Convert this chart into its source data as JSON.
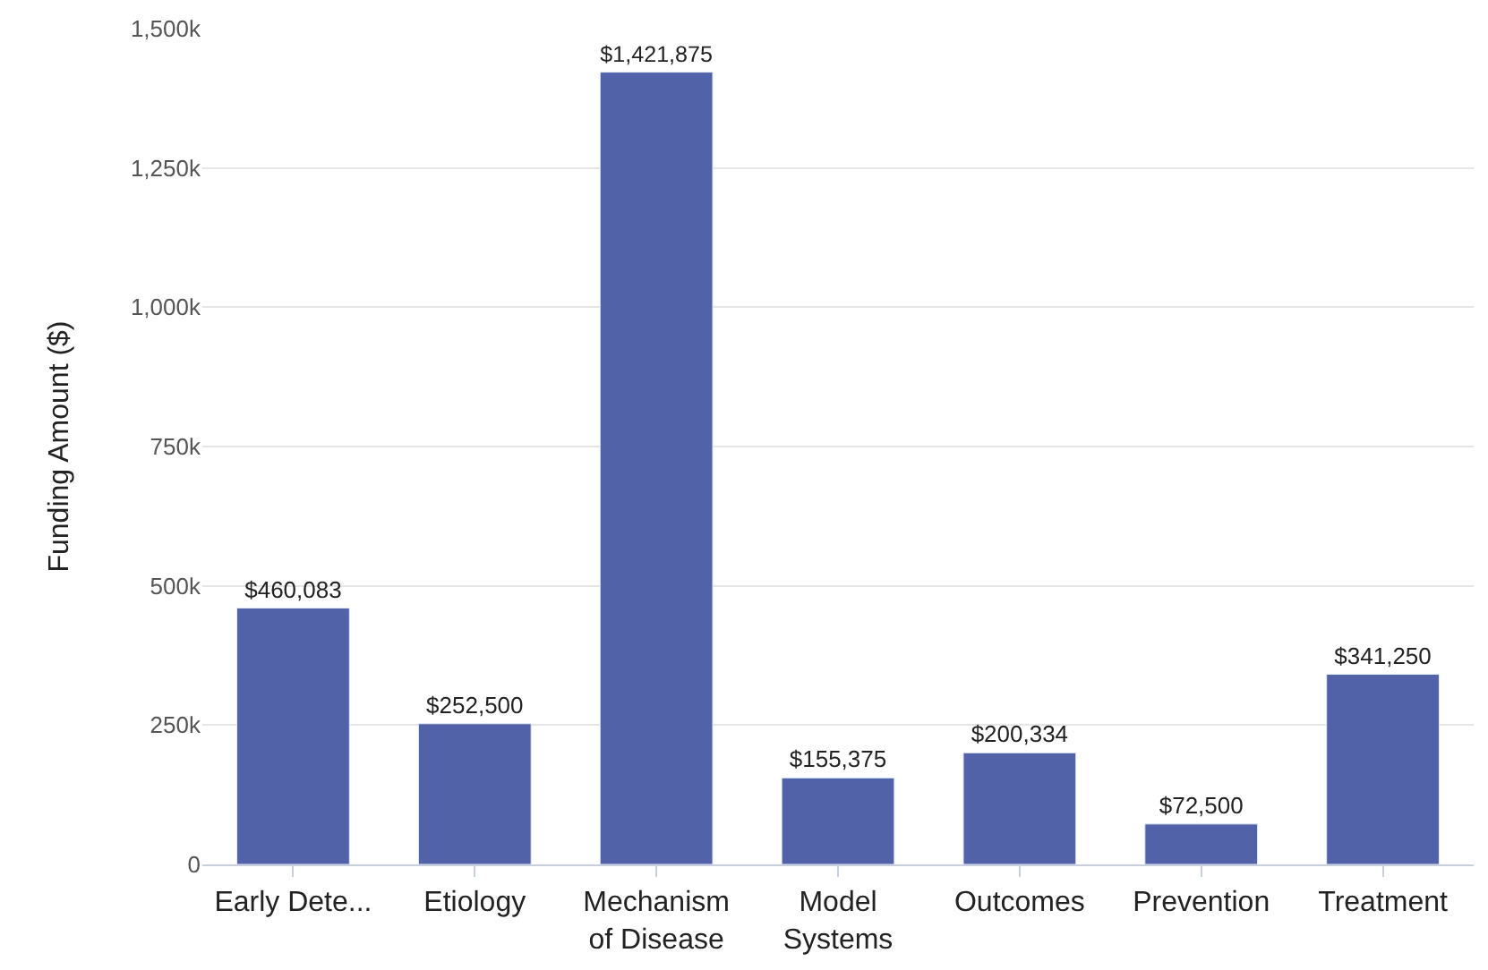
{
  "chart_data": {
    "type": "bar",
    "ylabel": "Funding Amount ($)",
    "categories": [
      "Early Dete...",
      "Etiology",
      "Mechanism\nof Disease",
      "Model\nSystems",
      "Outcomes",
      "Prevention",
      "Treatment"
    ],
    "values": [
      460083,
      252500,
      1421875,
      155375,
      200334,
      72500,
      341250
    ],
    "value_labels": [
      "$460,083",
      "$252,500",
      "$1,421,875",
      "$155,375",
      "$200,334",
      "$72,500",
      "$341,250"
    ],
    "color": "#5262a8",
    "ylim": [
      0,
      1500000
    ],
    "yticks": [
      0,
      {
        "value": 250000,
        "label": "250k"
      },
      {
        "value": 500000,
        "label": "500k"
      },
      {
        "value": 750000,
        "label": "750k"
      },
      {
        "value": 1000000,
        "label": "1,000k"
      },
      {
        "value": 1250000,
        "label": "1,250k"
      },
      {
        "value": 1500000,
        "label": "1,500k"
      }
    ],
    "grid": "y"
  }
}
